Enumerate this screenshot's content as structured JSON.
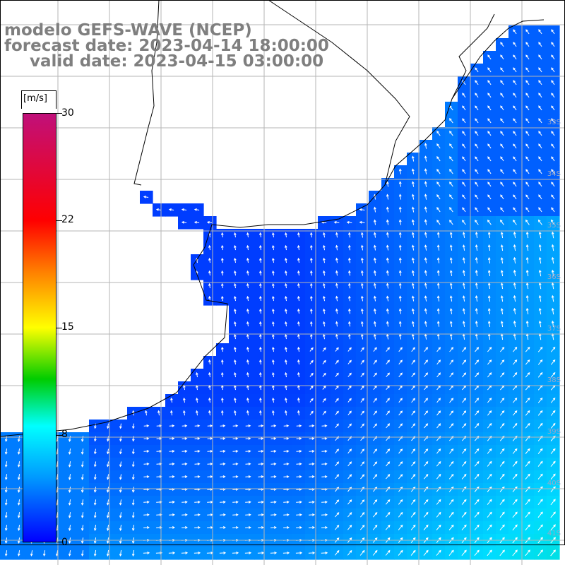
{
  "header": {
    "model": "modelo GEFS-WAVE (NCEP)",
    "forecast": "forecast date: 2023-04-14 18:00:00",
    "valid": "valid date: 2023-04-15 03:00:00"
  },
  "colorbar": {
    "unit": "[m/s]",
    "ticks": [
      "30",
      "22",
      "15",
      "8",
      "0"
    ],
    "colors": [
      "#c0107a",
      "#ff0000",
      "#ff8000",
      "#ffff00",
      "#00cc00",
      "#00ffff",
      "#0099ff",
      "#0000ff"
    ]
  },
  "map": {
    "land_color": "#ffffff",
    "grid_color": "#b5b5b5",
    "lat_labels": [
      "33S",
      "34S",
      "35S",
      "36S",
      "37S",
      "38S",
      "39S",
      "40S",
      "41S"
    ],
    "field_description": "wind speed magnitude with white direction arrows"
  }
}
